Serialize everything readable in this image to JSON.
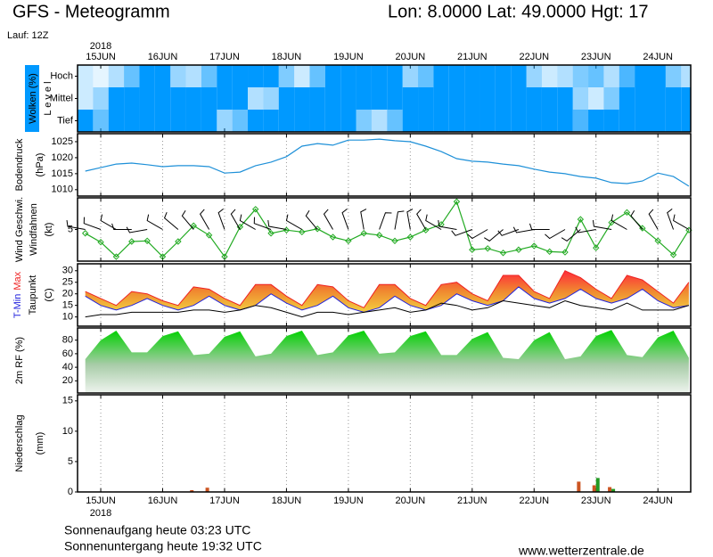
{
  "header": {
    "title": "GFS - Meteogramm",
    "location": "Lon: 8.0000 Lat: 49.0000 Hgt: 17",
    "run": "Lauf: 12Z"
  },
  "footer": {
    "sunrise": "Sonnenaufgang heute 03:23 UTC",
    "sunset": "Sonnenuntergang heute 19:32 UTC",
    "source": "www.wetterzentrale.de"
  },
  "x_axis": {
    "year": "2018",
    "xlim": [
      -0.375,
      9.53
    ],
    "xticks": [
      {
        "value": 0,
        "label": "15JUN"
      },
      {
        "value": 1,
        "label": "16JUN"
      },
      {
        "value": 2,
        "label": "17JUN"
      },
      {
        "value": 3,
        "label": "18JUN"
      },
      {
        "value": 4,
        "label": "19JUN"
      },
      {
        "value": 5,
        "label": "20JUN"
      },
      {
        "value": 6,
        "label": "21JUN"
      },
      {
        "value": 7,
        "label": "22JUN"
      },
      {
        "value": 8,
        "label": "23JUN"
      },
      {
        "value": 9,
        "label": "24JUN"
      }
    ],
    "x": [
      -0.25,
      0,
      0.25,
      0.5,
      0.75,
      1,
      1.25,
      1.5,
      1.75,
      2,
      2.25,
      2.5,
      2.75,
      3,
      3.25,
      3.5,
      3.75,
      4,
      4.25,
      4.5,
      4.75,
      5,
      5.25,
      5.5,
      5.75,
      6,
      6.25,
      6.5,
      6.75,
      7,
      7.25,
      7.5,
      7.75,
      8,
      8.25,
      8.5,
      8.75,
      9,
      9.25,
      9.5
    ]
  },
  "chart_data": [
    {
      "type": "heatmap",
      "ylabel": "Wolken (%)",
      "ylabel2": "L e v e l",
      "color": "#0099ff",
      "categories": [
        "Hoch",
        "Mittel",
        "Tief"
      ],
      "values": [
        [
          20,
          10,
          30,
          60,
          100,
          100,
          40,
          30,
          60,
          100,
          100,
          100,
          100,
          50,
          20,
          60,
          100,
          100,
          100,
          100,
          100,
          40,
          60,
          100,
          100,
          100,
          100,
          100,
          100,
          40,
          20,
          30,
          50,
          60,
          30,
          70,
          100,
          100,
          50,
          30
        ],
        [
          20,
          40,
          100,
          100,
          100,
          100,
          100,
          100,
          100,
          100,
          100,
          30,
          40,
          100,
          100,
          100,
          100,
          100,
          100,
          100,
          100,
          100,
          100,
          100,
          100,
          100,
          100,
          100,
          100,
          100,
          100,
          100,
          40,
          20,
          50,
          100,
          100,
          100,
          100,
          100
        ],
        [
          100,
          60,
          100,
          100,
          100,
          100,
          100,
          100,
          100,
          40,
          60,
          100,
          100,
          100,
          100,
          100,
          100,
          100,
          50,
          30,
          60,
          100,
          100,
          100,
          100,
          100,
          100,
          100,
          100,
          100,
          100,
          100,
          70,
          100,
          100,
          100,
          100,
          100,
          100,
          100
        ]
      ]
    },
    {
      "type": "line",
      "ylabel": "Bodendruck",
      "unit": "(hPa)",
      "ylim": [
        1008,
        1027.5
      ],
      "yticks": [
        1010,
        1015,
        1020,
        1025
      ],
      "series": [
        {
          "color": "#1e90d8",
          "values": [
            1015.8,
            1016.9,
            1018,
            1018.3,
            1017.8,
            1017.2,
            1017.5,
            1017.5,
            1017.2,
            1015.2,
            1015.5,
            1017.5,
            1018.6,
            1020.3,
            1023.6,
            1024.4,
            1023.9,
            1025.5,
            1025.5,
            1025.8,
            1025.3,
            1025,
            1023.6,
            1021.9,
            1019.7,
            1018.9,
            1018.6,
            1018,
            1017.5,
            1016.4,
            1015.5,
            1015,
            1014.1,
            1013.6,
            1012.2,
            1011.9,
            1012.7,
            1015.2,
            1014.1,
            1011.1
          ]
        }
      ]
    },
    {
      "type": "line",
      "ylabel": "Windfahnen",
      "unit": "(kt)",
      "ylim": [
        0,
        10
      ],
      "yticks": [
        5
      ],
      "markers": true,
      "series": [
        {
          "name": "Wind Geschwi.",
          "color": "#22aa22",
          "values": [
            4.4,
            3.0,
            0.7,
            3.1,
            3.2,
            0.7,
            3.1,
            5.6,
            4.1,
            0.7,
            5.4,
            8.2,
            4.4,
            4.9,
            4.6,
            5.1,
            3.8,
            3.2,
            4.4,
            4.1,
            3.2,
            3.8,
            4.9,
            5.8,
            9.4,
            1.8,
            2.0,
            1.3,
            1.8,
            2.4,
            1.5,
            1.4,
            6.6,
            2.1,
            6.1,
            7.7,
            5.2,
            3.2,
            1.0,
            4.9
          ]
        }
      ],
      "directions": [
        280,
        290,
        300,
        270,
        260,
        300,
        310,
        320,
        330,
        340,
        330,
        300,
        290,
        280,
        300,
        320,
        330,
        340,
        350,
        20,
        10,
        350,
        330,
        300,
        280,
        250,
        240,
        230,
        250,
        260,
        270,
        240,
        230,
        260,
        280,
        300,
        320,
        330,
        340,
        300
      ]
    },
    {
      "type": "band",
      "unit": "(C)",
      "ylim": [
        6,
        33
      ],
      "yticks": [
        10,
        15,
        20,
        25,
        30
      ],
      "series": [
        {
          "name": "T-Min",
          "color": "#2222dd",
          "values": [
            19,
            15,
            13,
            15,
            18,
            15,
            13,
            15,
            19,
            15,
            13,
            15,
            20,
            16,
            13,
            15,
            19,
            14,
            12,
            14,
            19,
            15,
            13,
            15,
            20,
            17,
            15,
            17,
            23,
            18,
            16,
            18,
            22,
            18,
            16,
            18,
            22,
            17,
            14,
            15
          ]
        },
        {
          "name": "Max",
          "color": "#ee2222",
          "values": [
            21,
            18,
            15,
            21,
            20,
            17,
            15,
            23,
            22,
            18,
            15,
            24,
            24,
            19,
            15,
            24,
            23,
            17,
            14,
            24,
            24,
            18,
            15,
            24,
            25,
            20,
            17,
            28,
            28,
            21,
            18,
            30,
            27,
            22,
            18,
            28,
            26,
            21,
            16,
            25
          ]
        },
        {
          "name": "Taupunkt",
          "color": "#000000",
          "values": [
            10,
            11,
            11,
            12,
            12,
            12,
            12,
            13,
            13,
            12,
            13,
            15,
            14,
            12,
            10,
            12,
            12,
            11,
            12,
            13,
            14,
            12,
            13,
            16,
            15,
            13,
            14,
            17,
            16,
            15,
            14,
            17,
            15,
            14,
            13,
            16,
            13,
            13,
            13,
            15
          ]
        }
      ]
    },
    {
      "type": "area",
      "ylim": [
        2,
        98
      ],
      "yticks": [
        20,
        40,
        60,
        80
      ],
      "series": [
        {
          "name": "2m RF (%)",
          "color": "#00bb00",
          "values": [
            52,
            80,
            94,
            62,
            62,
            86,
            93,
            58,
            60,
            85,
            93,
            56,
            60,
            86,
            94,
            58,
            62,
            87,
            94,
            60,
            62,
            86,
            93,
            58,
            58,
            82,
            92,
            54,
            52,
            80,
            92,
            52,
            56,
            86,
            95,
            58,
            55,
            84,
            94,
            54
          ]
        }
      ]
    },
    {
      "type": "bar",
      "ylabel": "Niederschlag",
      "unit": "(mm)",
      "ylim": [
        0,
        16
      ],
      "yticks": [
        0,
        5,
        10,
        15
      ],
      "series": [
        {
          "color": "#cc5522",
          "values": [
            0,
            0,
            0,
            0,
            0,
            0,
            0,
            0.3,
            0.7,
            0,
            0,
            0,
            0,
            0,
            0,
            0,
            0,
            0,
            0,
            0,
            0,
            0,
            0,
            0,
            0,
            0,
            0,
            0,
            0,
            0,
            0,
            0,
            1.7,
            1.1,
            0.8,
            0,
            0,
            0,
            0,
            0
          ]
        },
        {
          "color": "#229922",
          "values": [
            0,
            0,
            0,
            0,
            0,
            0,
            0,
            0,
            0,
            0,
            0,
            0,
            0,
            0,
            0,
            0,
            0,
            0,
            0,
            0,
            0,
            0,
            0,
            0,
            0,
            0,
            0,
            0,
            0,
            0,
            0,
            0,
            0,
            2.3,
            0.5,
            0,
            0,
            0,
            0,
            0
          ]
        }
      ]
    }
  ]
}
